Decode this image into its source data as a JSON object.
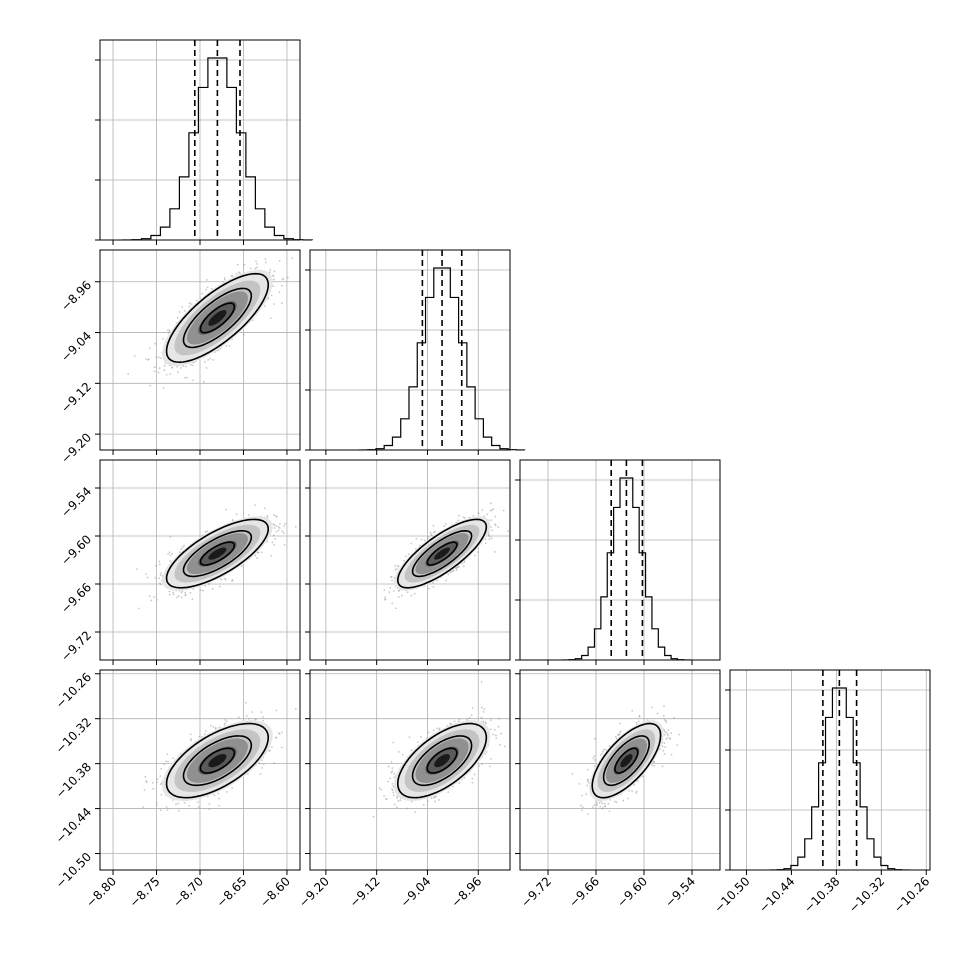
{
  "chart_data": {
    "type": "corner",
    "grid": true,
    "quantiles_shown": [
      0.16,
      0.5,
      0.84
    ],
    "colors": {
      "hist": "#000000",
      "points": "#9a9a9a",
      "grid": "#b0b0b0"
    },
    "params": [
      {
        "mean": -8.68,
        "std": 0.026,
        "range": [
          -8.815,
          -8.585
        ],
        "ticks": [
          "-8.80",
          "-8.75",
          "-8.70",
          "-8.65",
          "-8.60"
        ],
        "tick_values": [
          -8.8,
          -8.75,
          -8.7,
          -8.65,
          -8.6
        ],
        "quantiles": [
          -8.706,
          -8.68,
          -8.654
        ]
      },
      {
        "mean": -9.017,
        "std": 0.031,
        "range": [
          -9.225,
          -8.91
        ],
        "ticks": [
          "-9.20",
          "-9.12",
          "-9.04",
          "-8.96"
        ],
        "tick_values": [
          -9.2,
          -9.12,
          -9.04,
          -8.96
        ],
        "quantiles": [
          -9.048,
          -9.017,
          -8.986
        ]
      },
      {
        "mean": -9.622,
        "std": 0.019,
        "range": [
          -9.755,
          -9.505
        ],
        "ticks": [
          "-9.72",
          "-9.66",
          "-9.60",
          "-9.54"
        ],
        "tick_values": [
          -9.72,
          -9.66,
          -9.6,
          -9.54
        ],
        "quantiles": [
          -9.641,
          -9.622,
          -9.602
        ]
      },
      {
        "mean": -10.376,
        "std": 0.022,
        "range": [
          -10.522,
          -10.255
        ],
        "ticks": [
          "-10.50",
          "-10.44",
          "-10.38",
          "-10.32",
          "-10.26"
        ],
        "tick_values": [
          -10.5,
          -10.44,
          -10.38,
          -10.32,
          -10.26
        ],
        "quantiles": [
          -10.398,
          -10.376,
          -10.353
        ]
      }
    ],
    "correlations": [
      [
        1,
        0.75,
        0.72,
        0.62
      ],
      [
        0.75,
        1,
        0.78,
        0.62
      ],
      [
        0.72,
        0.78,
        1,
        0.68
      ],
      [
        0.62,
        0.62,
        0.68,
        1
      ]
    ]
  }
}
